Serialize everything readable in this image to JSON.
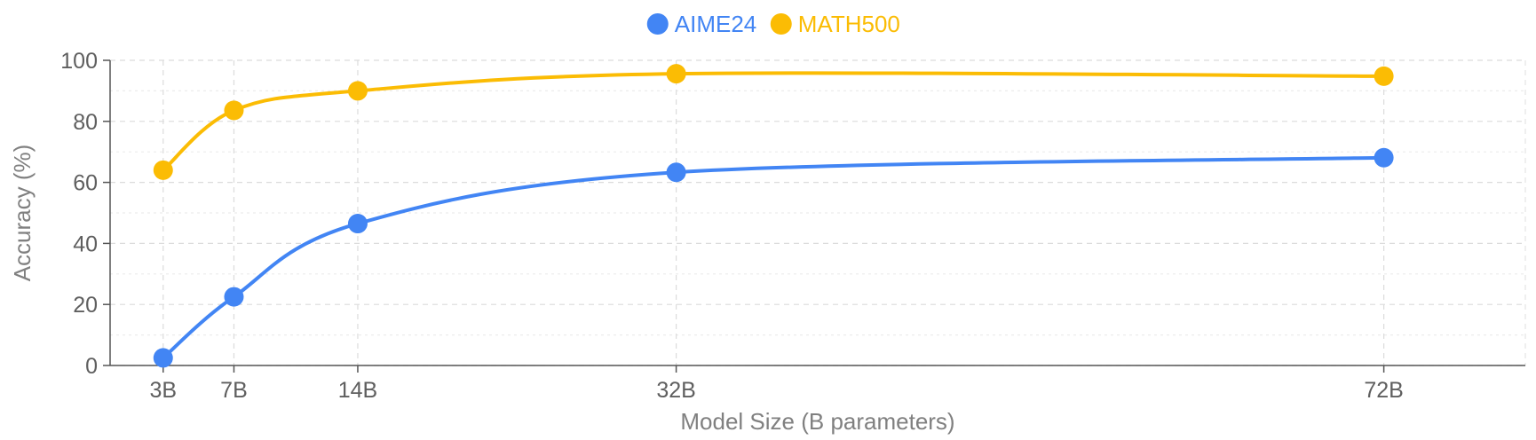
{
  "chart_data": {
    "type": "line",
    "title": "",
    "xlabel": "Model Size (B parameters)",
    "ylabel": "Accuracy (%)",
    "x": [
      3,
      7,
      14,
      32,
      72
    ],
    "x_tick_labels": [
      "3B",
      "7B",
      "14B",
      "32B",
      "72B"
    ],
    "xlim": [
      0,
      80
    ],
    "ylim": [
      0,
      100
    ],
    "y_ticks": [
      0,
      20,
      40,
      60,
      80,
      100
    ],
    "grid": true,
    "legend_position": "top-center",
    "series": [
      {
        "name": "AIME24",
        "color": "#4285f4",
        "values": [
          2.5,
          22.5,
          46.5,
          63.3,
          68.1
        ]
      },
      {
        "name": "MATH500",
        "color": "#fbbc04",
        "values": [
          64.0,
          83.6,
          90.0,
          95.6,
          94.8
        ]
      }
    ]
  }
}
